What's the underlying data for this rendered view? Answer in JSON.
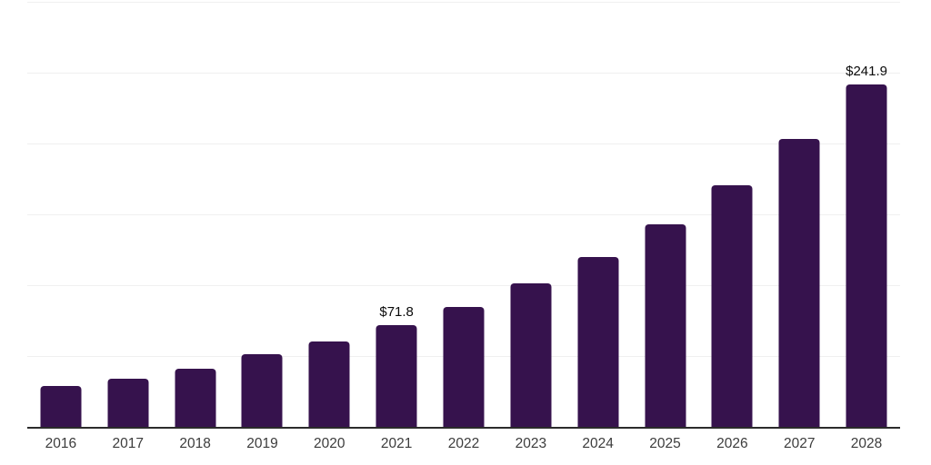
{
  "chart_data": {
    "type": "bar",
    "title": "",
    "xlabel": "",
    "ylabel": "",
    "categories": [
      "2016",
      "2017",
      "2018",
      "2019",
      "2020",
      "2021",
      "2022",
      "2023",
      "2024",
      "2025",
      "2026",
      "2027",
      "2028"
    ],
    "values": [
      28.8,
      33.8,
      41.0,
      51.3,
      60.3,
      71.8,
      84.6,
      101.3,
      119.9,
      143.0,
      170.5,
      203.2,
      241.9
    ],
    "value_labels": [
      {
        "index": 5,
        "text": "$71.8"
      },
      {
        "index": 12,
        "text": "$241.9"
      }
    ],
    "ylim": [
      0,
      300
    ],
    "gridline_step": 50,
    "grid": true,
    "legend": false,
    "colors": {
      "bar": "#36124D",
      "axis_line": "#2B2B2B",
      "gridline": "#F0F0F0",
      "tick_label": "#3C3C3C",
      "value_label": "#0A0A0A",
      "background": "#FFFFFF"
    }
  }
}
